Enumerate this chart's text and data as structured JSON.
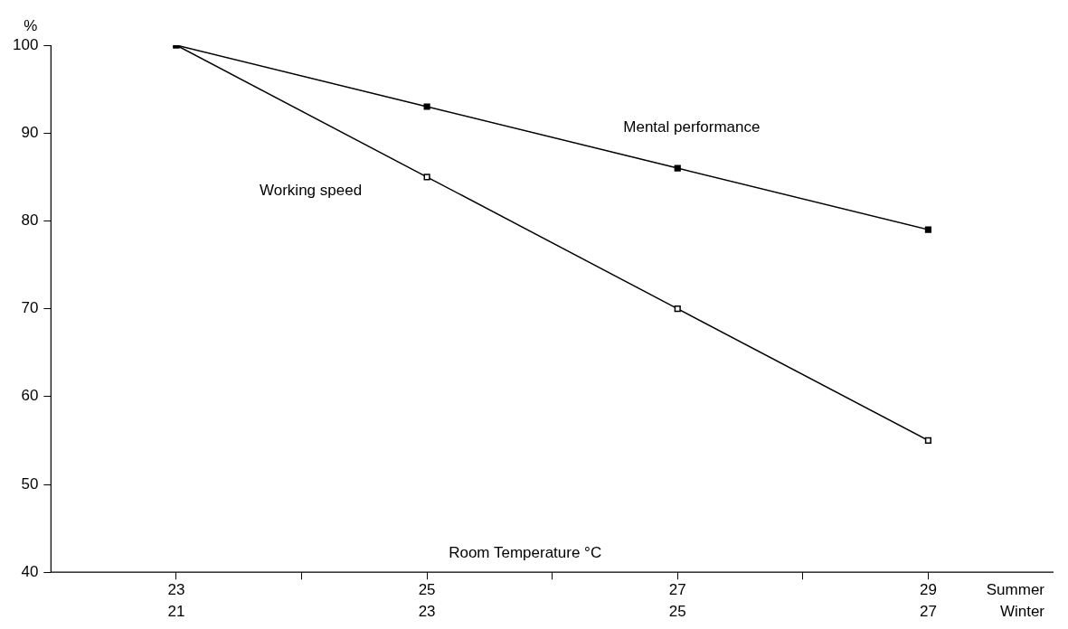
{
  "chart_data": {
    "type": "line",
    "ylabel": "%",
    "xlabel": "Room Temperature °C",
    "x": [
      23,
      25,
      27,
      29
    ],
    "xlim": [
      22,
      30
    ],
    "xticks": [
      23,
      {
        "value": 24,
        "label": null
      },
      25,
      {
        "value": 26,
        "label": null
      },
      27,
      {
        "value": 28,
        "label": null
      },
      29
    ],
    "x2lim": [
      20,
      28
    ],
    "x2ticks": [
      21,
      23,
      25,
      27
    ],
    "ylim": [
      40,
      100
    ],
    "yticks": [
      40,
      50,
      60,
      70,
      80,
      90,
      100
    ],
    "series": [
      {
        "name": "Mental performance",
        "color": "#000000",
        "values": [
          100,
          93,
          86,
          79
        ]
      },
      {
        "name": "Working speed",
        "color": "#000000",
        "values": [
          100,
          85,
          70,
          55
        ]
      }
    ],
    "annotations": [
      "Summer",
      "Winter"
    ],
    "marker": "square",
    "line_style": "solid",
    "grid": false,
    "legend": false
  }
}
